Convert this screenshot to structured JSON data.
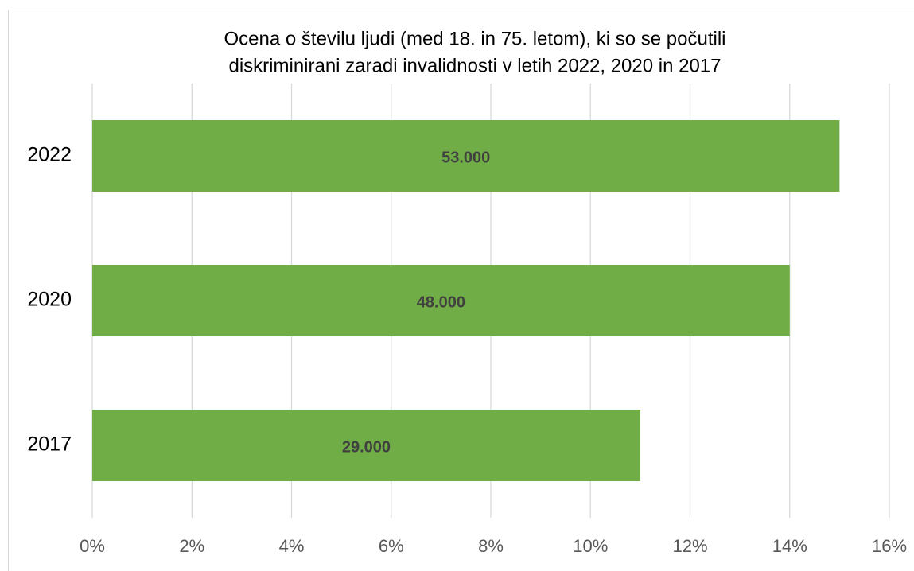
{
  "chart_data": {
    "type": "barh",
    "title": [
      "Ocena o številu ljudi (med 18. in 75. letom), ki so se počutili",
      "diskriminirani zaradi invalidnosti v letih 2022, 2020 in 2017"
    ],
    "categories": [
      "2022",
      "2020",
      "2017"
    ],
    "values": [
      15,
      14,
      11
    ],
    "annotations": [
      "53.000",
      "48.000",
      "29.000"
    ],
    "color": "#70ad47",
    "xlim": [
      0,
      16
    ],
    "xticks": [
      {
        "value": 0,
        "label": "0%"
      },
      {
        "value": 2,
        "label": "2%"
      },
      {
        "value": 4,
        "label": "4%"
      },
      {
        "value": 6,
        "label": "6%"
      },
      {
        "value": 8,
        "label": "8%"
      },
      {
        "value": 10,
        "label": "10%"
      },
      {
        "value": 12,
        "label": "12%"
      },
      {
        "value": 14,
        "label": "14%"
      },
      {
        "value": 16,
        "label": "16%"
      }
    ],
    "grid": true
  }
}
